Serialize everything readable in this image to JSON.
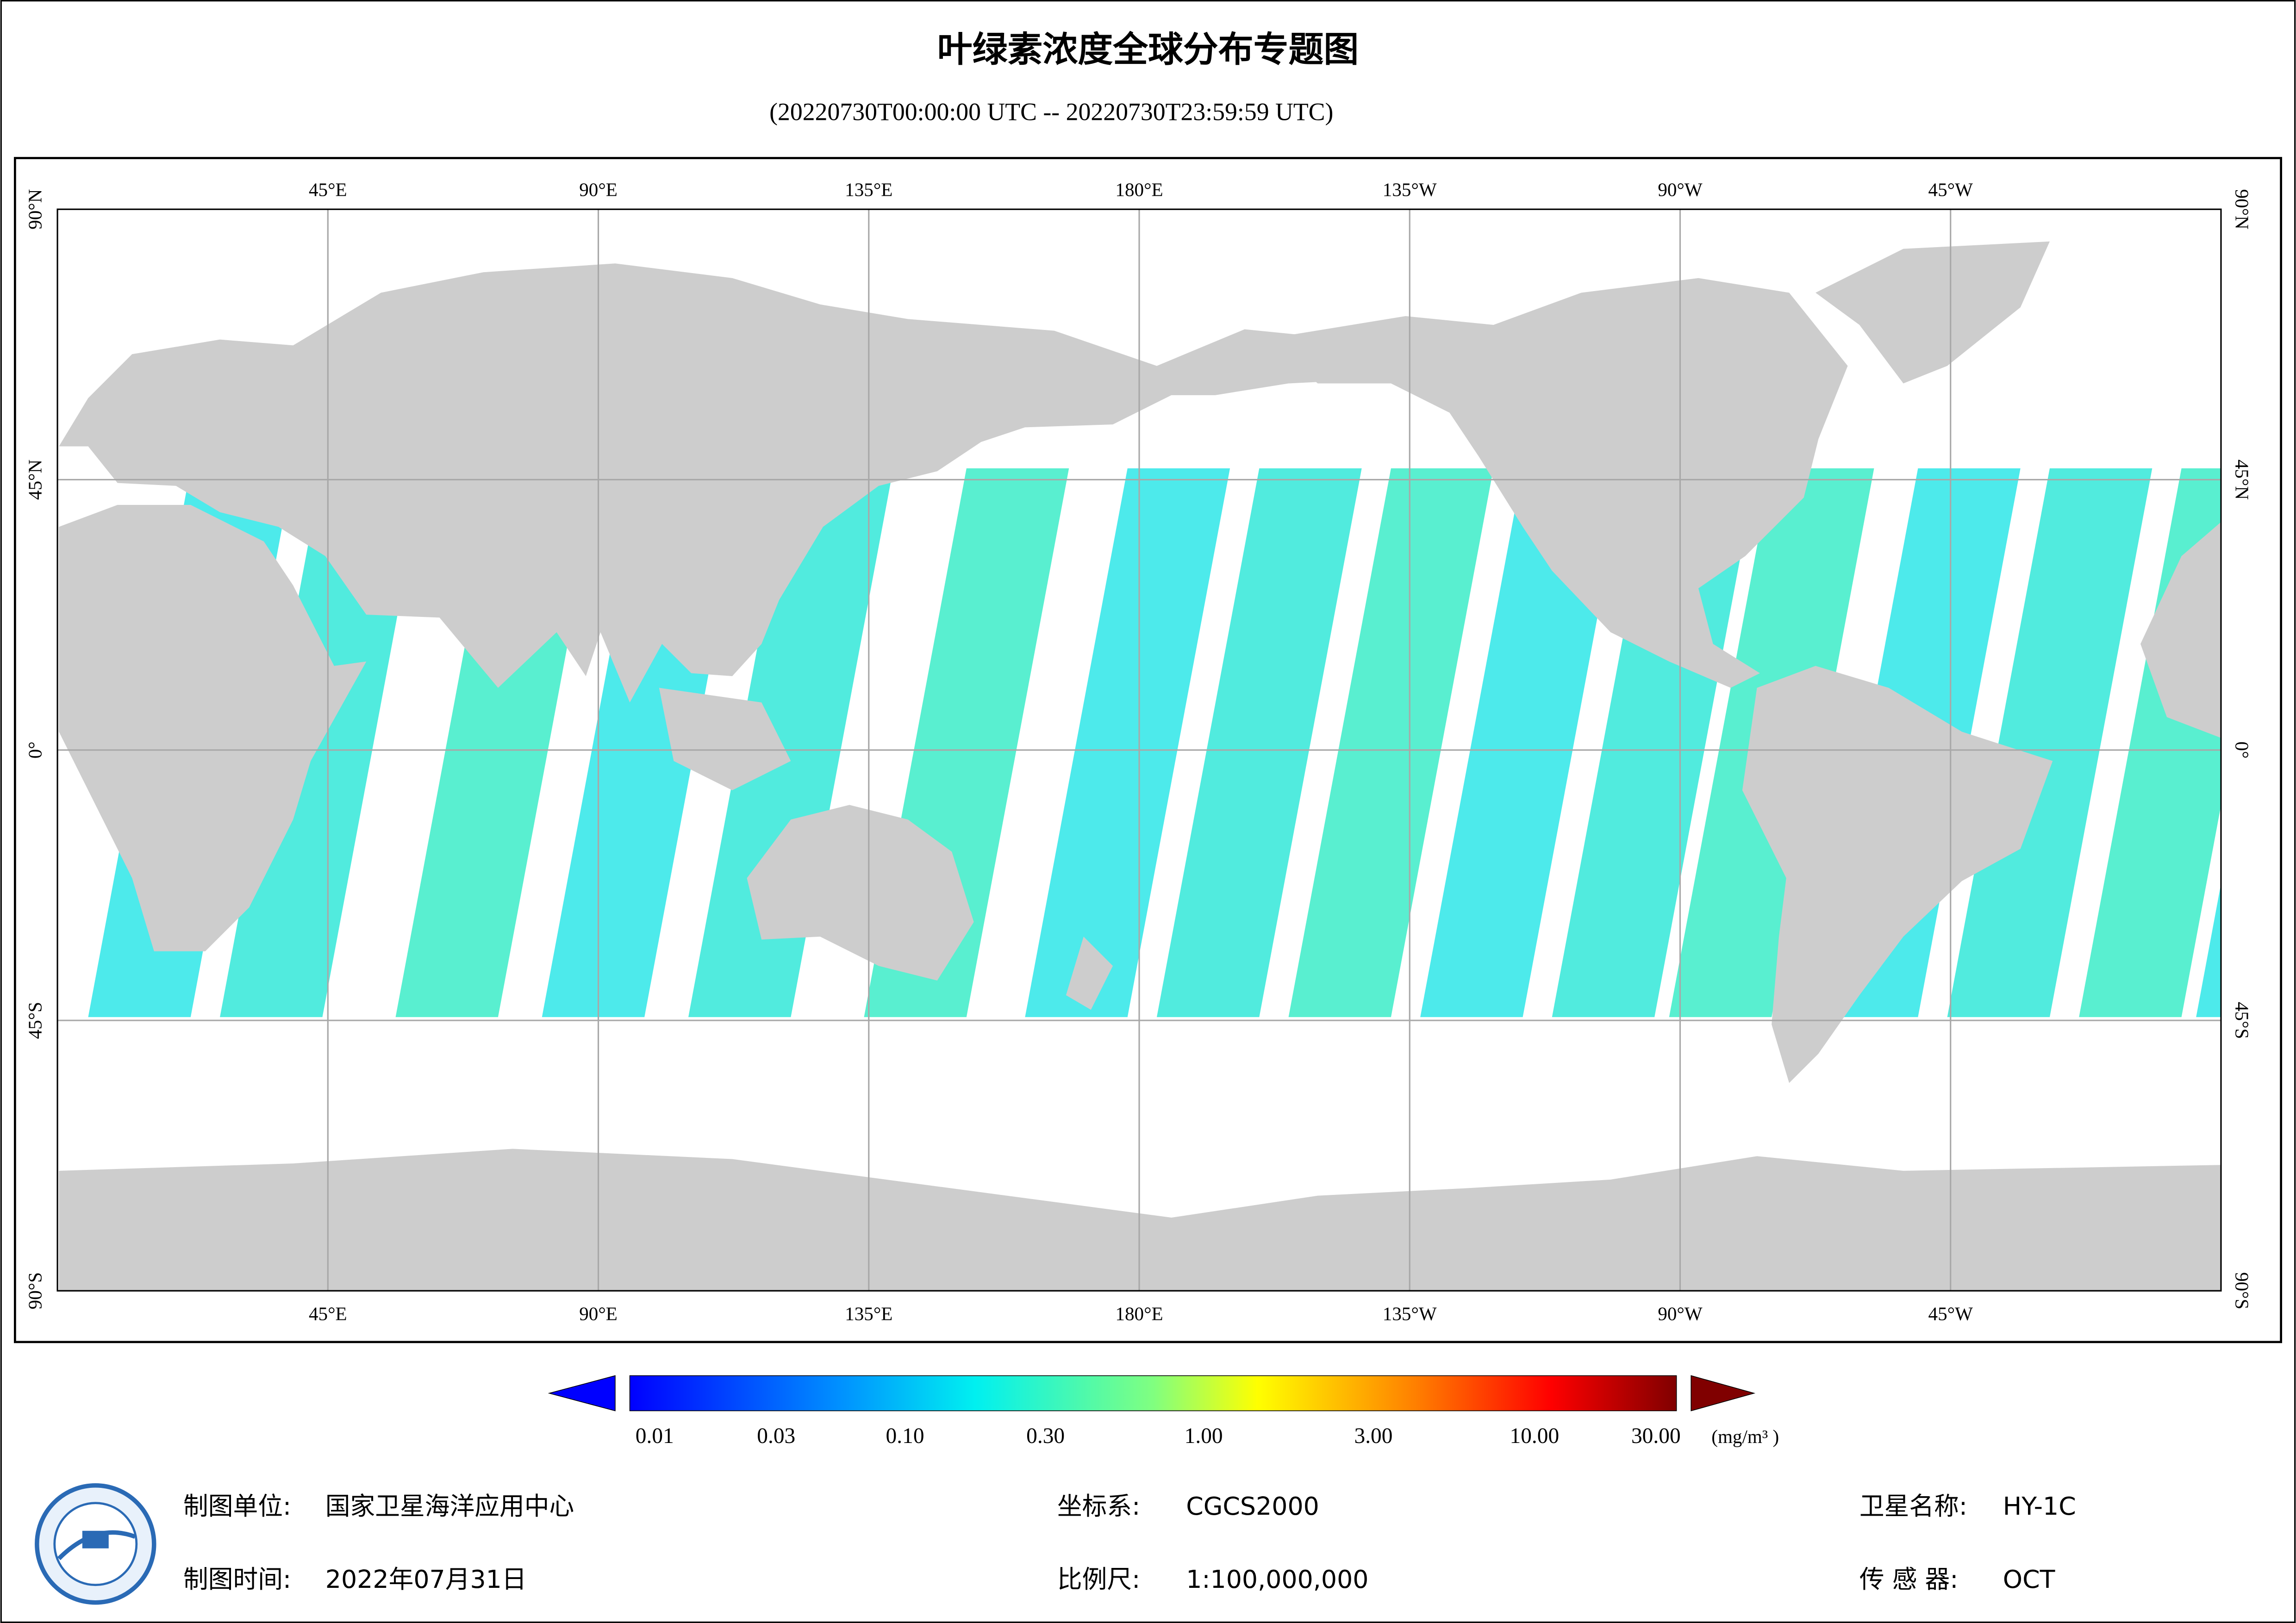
{
  "title": "叶绿素浓度全球分布专题图",
  "subtitle": "(20220730T00:00:00 UTC -- 20220730T23:59:59 UTC)",
  "map": {
    "lon_labels": [
      "45°E",
      "90°E",
      "135°E",
      "180°E",
      "135°W",
      "90°W",
      "45°W"
    ],
    "lat_labels": [
      "90°N",
      "45°N",
      "0°",
      "45°S",
      "90°S"
    ]
  },
  "colorbar": {
    "labels": [
      "0.01",
      "0.03",
      "0.10",
      "0.30",
      "1.00",
      "3.00",
      "10.00",
      "30.00"
    ],
    "unit": "(mg/m³ )"
  },
  "footer": {
    "org_label": "制图单位:",
    "org": "国家卫星海洋应用中心",
    "date_label": "制图时间:",
    "date": "2022年07月31日",
    "crs_label": "坐标系:",
    "crs": "CGCS2000",
    "scale_label": "比例尺:",
    "scale": "1:100,000,000",
    "satellite_label": "卫星名称:",
    "satellite": "HY-1C",
    "sensor_label": "传 感 器:",
    "sensor": "OCT"
  }
}
